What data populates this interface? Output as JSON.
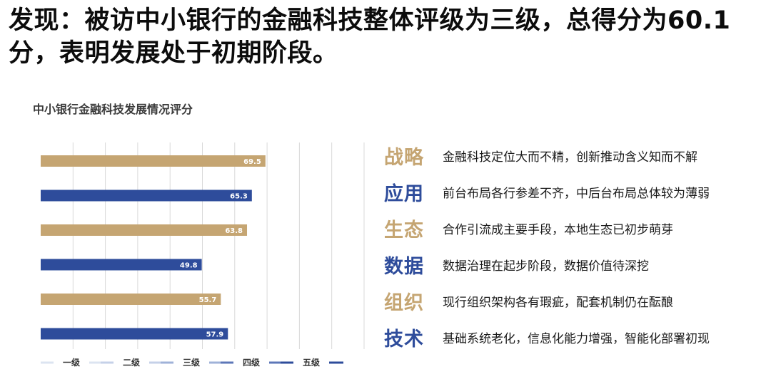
{
  "headline": "发现：被访中小银行的金融科技整体评级为三级，总得分为60.1分，表明发展处于初期阶段。",
  "colors": {
    "gold": "#C5A572",
    "blue": "#2E4C9B",
    "grid": "#D9D9D9"
  },
  "chart_data": {
    "type": "bar",
    "orientation": "horizontal",
    "title": "中小银行金融科技发展情况评分",
    "bars": [
      {
        "value": 69.5,
        "label": "69.5",
        "color": "gold"
      },
      {
        "value": 65.3,
        "label": "65.3",
        "color": "blue"
      },
      {
        "value": 63.8,
        "label": "63.8",
        "color": "gold"
      },
      {
        "value": 49.8,
        "label": "49.8",
        "color": "blue"
      },
      {
        "value": 55.7,
        "label": "55.7",
        "color": "gold"
      },
      {
        "value": 57.9,
        "label": "57.9",
        "color": "blue"
      }
    ],
    "xlim": [
      0,
      100
    ],
    "grid": true,
    "levels": [
      {
        "name": "一级",
        "color": "#DCE4F1"
      },
      {
        "name": "二级",
        "color": "#C5D1E8"
      },
      {
        "name": "三级",
        "color": "#9FB2D8"
      },
      {
        "name": "四级",
        "color": "#5D77B8"
      },
      {
        "name": "五级",
        "color": "#2E4C9B"
      }
    ]
  },
  "findings": [
    {
      "category": "战略",
      "color": "gold",
      "text": "金融科技定位大而不精，创新推动含义知而不解"
    },
    {
      "category": "应用",
      "color": "blue",
      "text": "前台布局各行参差不齐，中后台布局总体较为薄弱"
    },
    {
      "category": "生态",
      "color": "gold",
      "text": "合作引流成主要手段，本地生态已初步萌芽"
    },
    {
      "category": "数据",
      "color": "blue",
      "text": "数据治理在起步阶段，数据价值待深挖"
    },
    {
      "category": "组织",
      "color": "gold",
      "text": "现行组织架构各有瑕疵，配套机制仍在酝酿"
    },
    {
      "category": "技术",
      "color": "blue",
      "text": "基础系统老化，信息化能力增强，智能化部署初现"
    }
  ]
}
